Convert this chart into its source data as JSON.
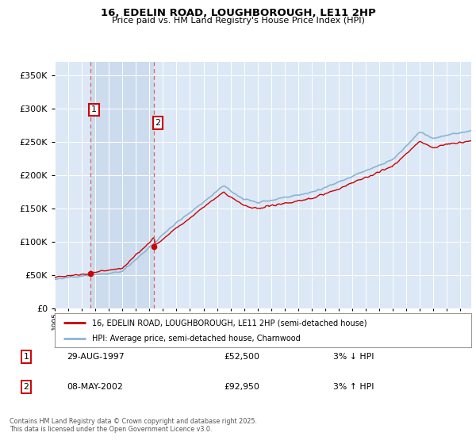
{
  "title_line1": "16, EDELIN ROAD, LOUGHBOROUGH, LE11 2HP",
  "title_line2": "Price paid vs. HM Land Registry's House Price Index (HPI)",
  "ylim": [
    0,
    370000
  ],
  "yticks": [
    0,
    50000,
    100000,
    150000,
    200000,
    250000,
    300000,
    350000
  ],
  "hpi_color": "#8ab4d4",
  "price_color": "#cc0000",
  "dot_color": "#cc0000",
  "vline_color": "#e06060",
  "bg_color": "#ffffff",
  "plot_bg_color": "#dce8f5",
  "shaded_color": "#ccdcee",
  "sale1_year": 1997.66,
  "sale1_price": 52500,
  "sale2_year": 2002.36,
  "sale2_price": 92950,
  "legend_label1": "16, EDELIN ROAD, LOUGHBOROUGH, LE11 2HP (semi-detached house)",
  "legend_label2": "HPI: Average price, semi-detached house, Charnwood",
  "table_row1_num": "1",
  "table_row1_date": "29-AUG-1997",
  "table_row1_price": "£52,500",
  "table_row1_hpi": "3% ↓ HPI",
  "table_row2_num": "2",
  "table_row2_date": "08-MAY-2002",
  "table_row2_price": "£92,950",
  "table_row2_hpi": "3% ↑ HPI",
  "footer": "Contains HM Land Registry data © Crown copyright and database right 2025.\nThis data is licensed under the Open Government Licence v3.0.",
  "xmin": 1995,
  "xmax": 2025.8
}
